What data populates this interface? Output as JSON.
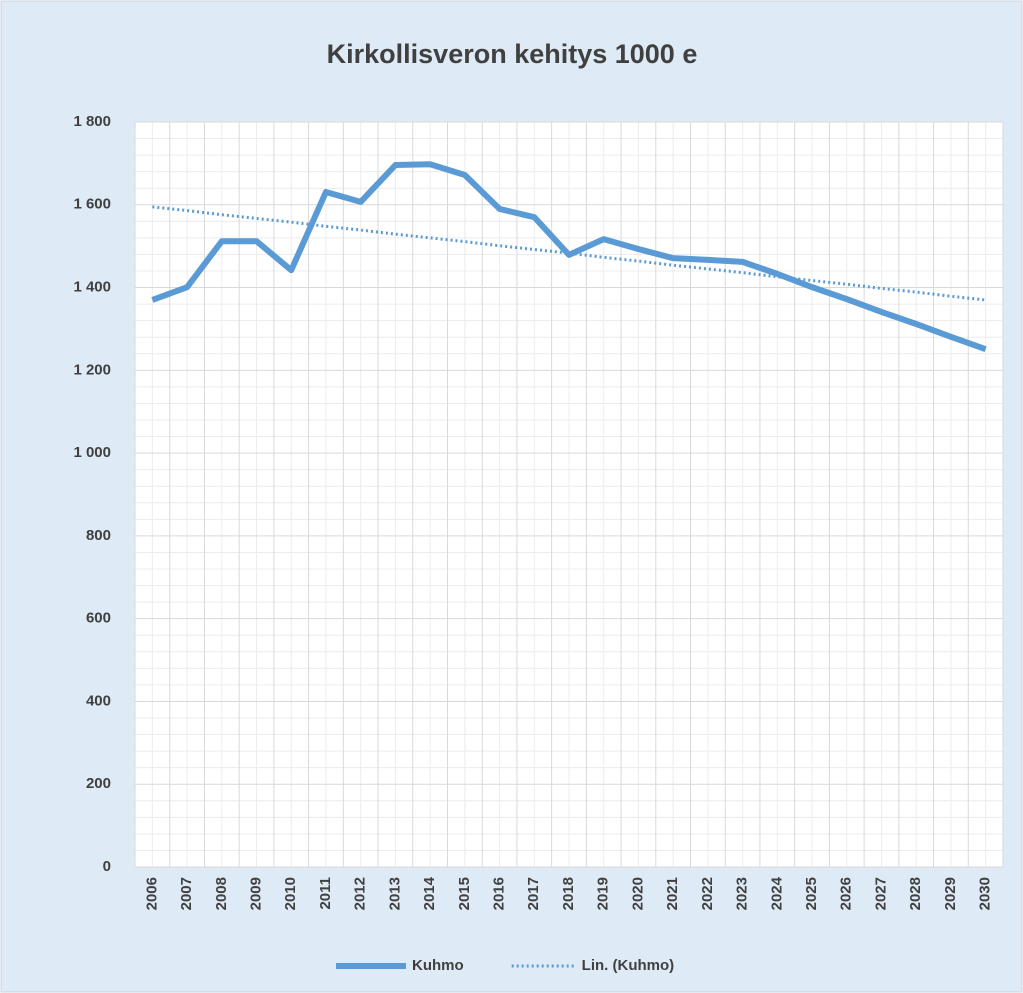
{
  "chart_data": {
    "type": "line",
    "title": "Kirkollisveron kehitys 1000 e",
    "categories": [
      "2006",
      "2007",
      "2008",
      "2009",
      "2010",
      "2011",
      "2012",
      "2013",
      "2014",
      "2015",
      "2016",
      "2017",
      "2018",
      "2019",
      "2020",
      "2021",
      "2022",
      "2023",
      "2024",
      "2025",
      "2026",
      "2027",
      "2028",
      "2029",
      "2030"
    ],
    "series": [
      {
        "name": "Kuhmo",
        "color": "#5b9bd5",
        "style": "solid",
        "values": [
          1370,
          1401,
          1512,
          1512,
          1442,
          1631,
          1607,
          1696,
          1698,
          1672,
          1590,
          1570,
          1479,
          1517,
          1493,
          1471,
          1467,
          1462,
          1433,
          1401,
          1372,
          1341,
          1312,
          1281,
          1251
        ]
      },
      {
        "name": "Lin. (Kuhmo)",
        "color": "#5b9bd5",
        "style": "dotted",
        "values": [
          1595,
          1586,
          1576,
          1567,
          1558,
          1548,
          1539,
          1529,
          1520,
          1511,
          1501,
          1492,
          1483,
          1473,
          1464,
          1454,
          1445,
          1436,
          1426,
          1417,
          1408,
          1398,
          1389,
          1379,
          1370
        ]
      }
    ],
    "ylim": [
      0,
      1800
    ],
    "yticks": [
      0,
      200,
      400,
      600,
      800,
      {
        "value": 1000,
        "label": "1 000"
      },
      {
        "value": 1200,
        "label": "1 200"
      },
      {
        "value": 1400,
        "label": "1 400"
      },
      {
        "value": 1600,
        "label": "1 600"
      },
      {
        "value": 1800,
        "label": "1 800"
      }
    ],
    "grid": true,
    "legend": "bottom"
  }
}
